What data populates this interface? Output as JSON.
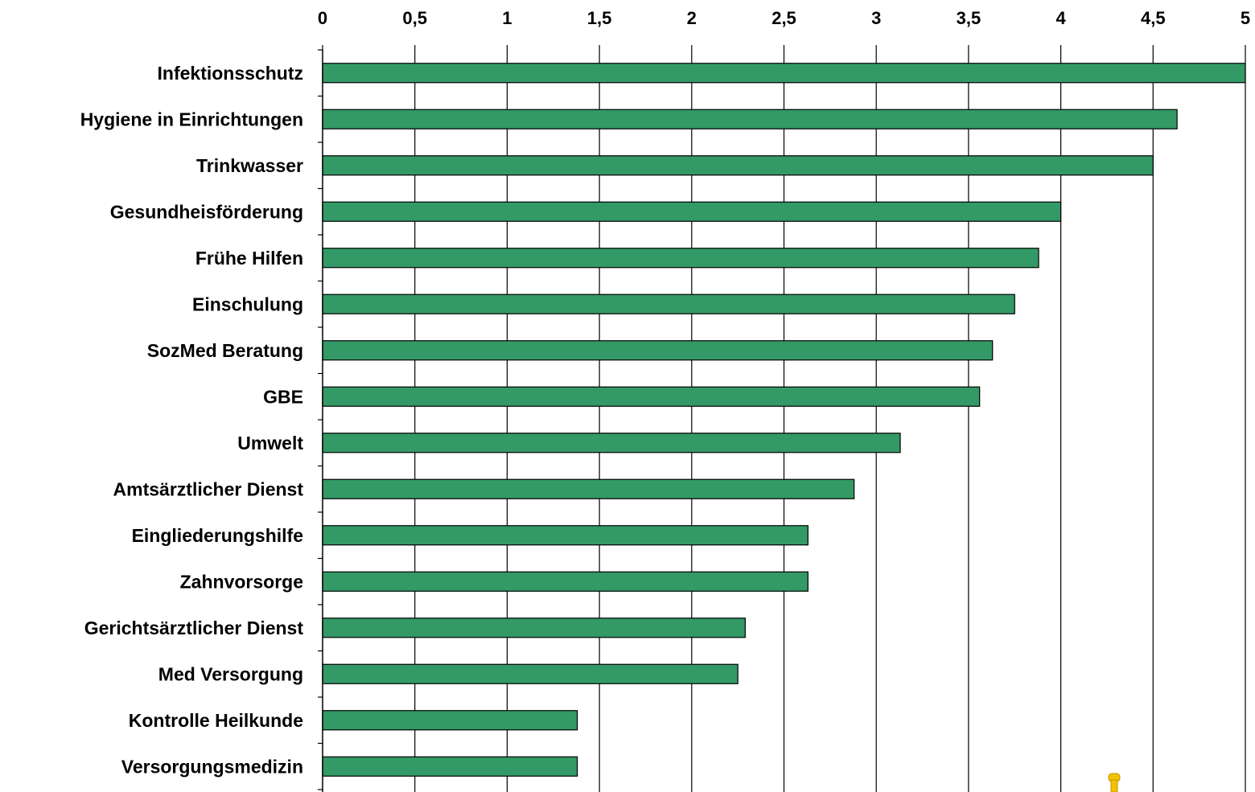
{
  "chart_data": {
    "type": "bar",
    "orientation": "horizontal",
    "title": "",
    "xlabel": "",
    "ylabel": "",
    "xlim": [
      0,
      5
    ],
    "tick_labels": [
      "0",
      "0,5",
      "1",
      "1,5",
      "2",
      "2,5",
      "3",
      "3,5",
      "4",
      "4,5",
      "5"
    ],
    "tick_values": [
      0,
      0.5,
      1,
      1.5,
      2,
      2.5,
      3,
      3.5,
      4,
      4.5,
      5
    ],
    "axis_position": "top",
    "grid": "vertical",
    "legend": "none",
    "bar_color": "#339966",
    "categories": [
      "Infektionsschutz",
      "Hygiene in Einrichtungen",
      "Trinkwasser",
      "Gesundheisförderung",
      "Frühe Hilfen",
      "Einschulung",
      "SozMed Beratung",
      "GBE",
      "Umwelt",
      "Amtsärztlicher Dienst",
      "Eingliederungshilfe",
      "Zahnvorsorge",
      "Gerichtsärztlicher Dienst",
      "Med Versorgung",
      "Kontrolle Heilkunde",
      "Versorgungsmedizin"
    ],
    "values": [
      5.0,
      4.63,
      4.5,
      4.0,
      3.88,
      3.75,
      3.63,
      3.56,
      3.13,
      2.88,
      2.63,
      2.63,
      2.29,
      2.25,
      1.38,
      1.38
    ]
  }
}
